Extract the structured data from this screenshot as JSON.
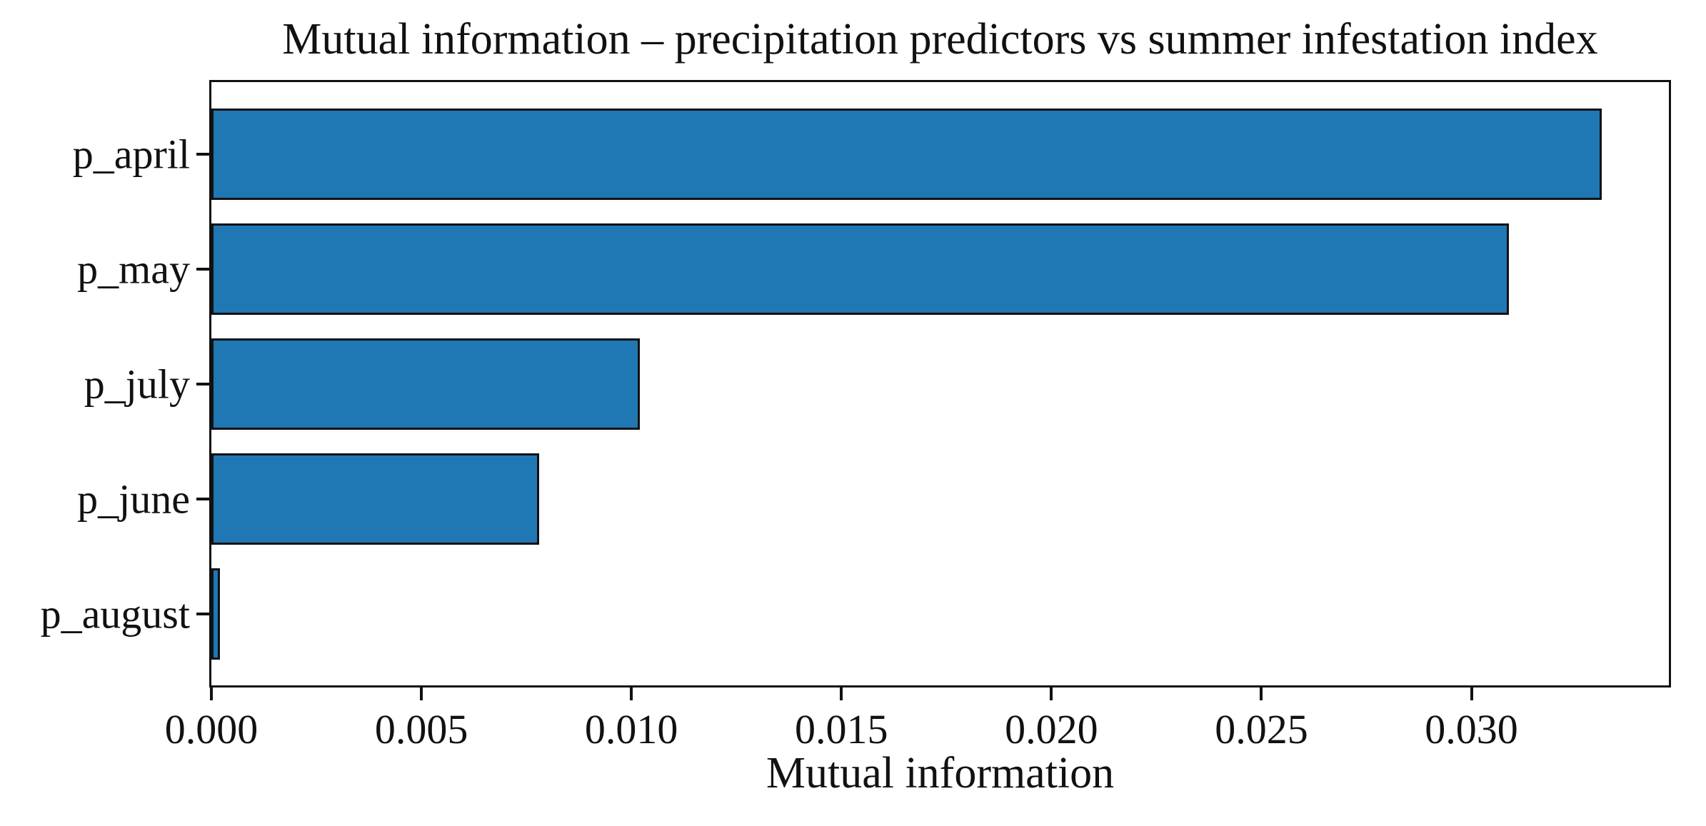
{
  "chart_data": {
    "type": "bar",
    "orientation": "horizontal",
    "title": "Mutual information – precipitation predictors vs summer infestation index",
    "xlabel": "Mutual information",
    "ylabel": "",
    "categories": [
      "p_april",
      "p_may",
      "p_july",
      "p_june",
      "p_august"
    ],
    "values": [
      0.0331,
      0.0309,
      0.0102,
      0.0078,
      0.0002
    ],
    "xlim": [
      0,
      0.0347
    ],
    "xticks": [
      0.0,
      0.005,
      0.01,
      0.015,
      0.02,
      0.025,
      0.03
    ],
    "xtick_labels": [
      "0.000",
      "0.005",
      "0.010",
      "0.015",
      "0.020",
      "0.025",
      "0.030"
    ],
    "grid": false,
    "legend_position": "none",
    "colors": {
      "bar_fill": "#1f77b4",
      "bar_edge": "#111111",
      "background": "#ffffff",
      "text": "#111111"
    }
  }
}
